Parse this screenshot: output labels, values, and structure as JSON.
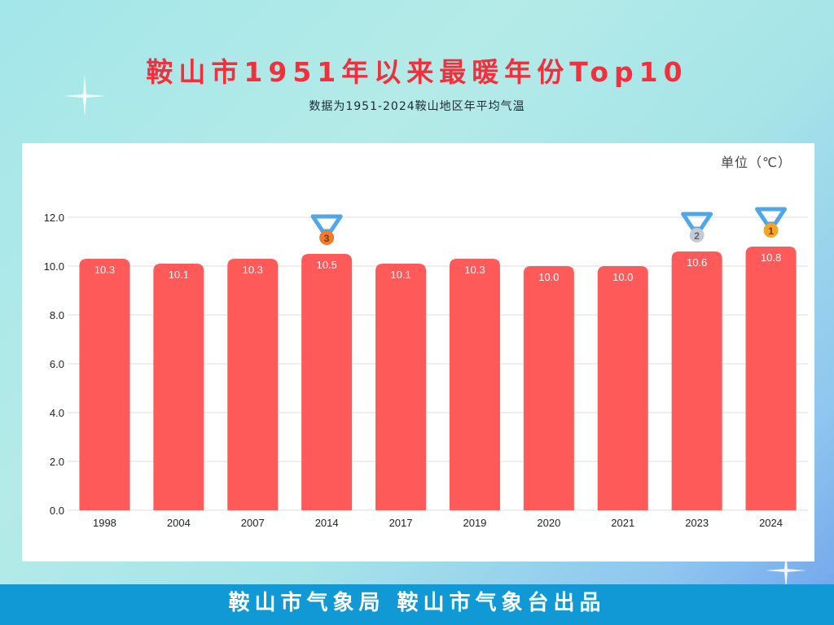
{
  "header": {
    "title": "鞍山市1951年以来最暖年份Top10",
    "subtitle": "数据为1951-2024鞍山地区年平均气温"
  },
  "footer": {
    "credit": "鞍山市气象局 鞍山市气象台出品"
  },
  "colors": {
    "bar": "#ff5a5a",
    "title": "#f0303c",
    "footer": "#1199d6",
    "ribbon": "#4fa6e8",
    "gold": "#f3a52a",
    "silver": "#c4cbd3",
    "bronze": "#f07a2e"
  },
  "chart_data": {
    "type": "bar",
    "unit_label": "单位（℃）",
    "categories": [
      "1998",
      "2004",
      "2007",
      "2014",
      "2017",
      "2019",
      "2020",
      "2021",
      "2023",
      "2024"
    ],
    "values": [
      10.3,
      10.1,
      10.3,
      10.5,
      10.1,
      10.3,
      10.0,
      10.0,
      10.6,
      10.8
    ],
    "value_labels": [
      "10.3",
      "10.1",
      "10.3",
      "10.5",
      "10.1",
      "10.3",
      "10.0",
      "10.0",
      "10.6",
      "10.8"
    ],
    "ylim": [
      0,
      12
    ],
    "yticks": [
      "0.0",
      "2.0",
      "4.0",
      "6.0",
      "8.0",
      "10.0",
      "12.0"
    ],
    "grid": true,
    "medals": [
      {
        "category": "2024",
        "rank": "1",
        "icon": "gold-medal-icon"
      },
      {
        "category": "2023",
        "rank": "2",
        "icon": "silver-medal-icon"
      },
      {
        "category": "2014",
        "rank": "3",
        "icon": "bronze-medal-icon"
      }
    ]
  }
}
